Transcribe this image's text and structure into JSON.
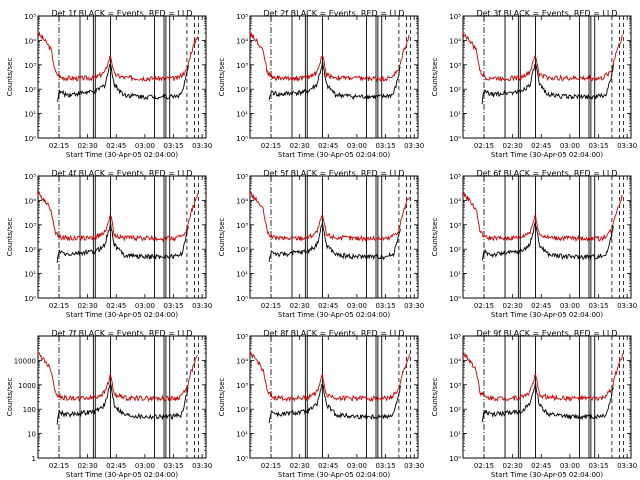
{
  "chart_data": {
    "type": "line",
    "xlabel": "Start Time (30-Apr-05 02:04:00)",
    "ylabel": "Counts/sec",
    "x_tick_labels": [
      "02:15",
      "02:30",
      "02:45",
      "03:00",
      "03:15",
      "03:30"
    ],
    "y_scale": "log",
    "ylim": [
      1,
      100000
    ],
    "y_tick_labels_exponent": [
      "10⁰",
      "10¹",
      "10²",
      "10³",
      "10⁴",
      "10⁵"
    ],
    "y_tick_labels_plain": [
      "1",
      "10",
      "100",
      "1000",
      "10000"
    ],
    "colors": {
      "events": "#000000",
      "lld": "#cc0000"
    },
    "panels": [
      {
        "title": "Det 1f  BLACK = Events, RED = LLD",
        "ytick_style": "exponent"
      },
      {
        "title": "Det 2f  BLACK = Events, RED = LLD",
        "ytick_style": "exponent"
      },
      {
        "title": "Det 3f  BLACK = Events, RED = LLD",
        "ytick_style": "exponent"
      },
      {
        "title": "Det 4f  BLACK = Events, RED = LLD",
        "ytick_style": "exponent"
      },
      {
        "title": "Det 5f  BLACK = Events, RED = LLD",
        "ytick_style": "exponent"
      },
      {
        "title": "Det 6f  BLACK = Events, RED = LLD",
        "ytick_style": "exponent"
      },
      {
        "title": "Det 7f  BLACK = Events, RED = LLD",
        "ytick_style": "plain"
      },
      {
        "title": "Det 8f  BLACK = Events, RED = LLD",
        "ytick_style": "exponent"
      },
      {
        "title": "Det 9f  BLACK = Events, RED = LLD",
        "ytick_style": "exponent"
      }
    ],
    "series_approx": [
      {
        "name": "RED = LLD",
        "points_minutes_since_0204_counts": [
          [
            0,
            20000
          ],
          [
            4,
            9000
          ],
          [
            7,
            4000
          ],
          [
            9,
            500
          ],
          [
            12,
            300
          ],
          [
            20,
            280
          ],
          [
            30,
            300
          ],
          [
            35,
            500
          ],
          [
            38,
            2500
          ],
          [
            40,
            400
          ],
          [
            45,
            300
          ],
          [
            60,
            280
          ],
          [
            73,
            280
          ],
          [
            78,
            600
          ],
          [
            80,
            3000
          ],
          [
            84,
            20000
          ]
        ]
      },
      {
        "name": "BLACK = Events",
        "points_minutes_since_0204_counts": [
          [
            10,
            30
          ],
          [
            11,
            80
          ],
          [
            15,
            60
          ],
          [
            22,
            70
          ],
          [
            30,
            80
          ],
          [
            35,
            150
          ],
          [
            38,
            1200
          ],
          [
            40,
            150
          ],
          [
            45,
            60
          ],
          [
            55,
            50
          ],
          [
            70,
            50
          ],
          [
            75,
            60
          ],
          [
            77,
            200
          ],
          [
            79,
            1000
          ]
        ]
      }
    ]
  }
}
